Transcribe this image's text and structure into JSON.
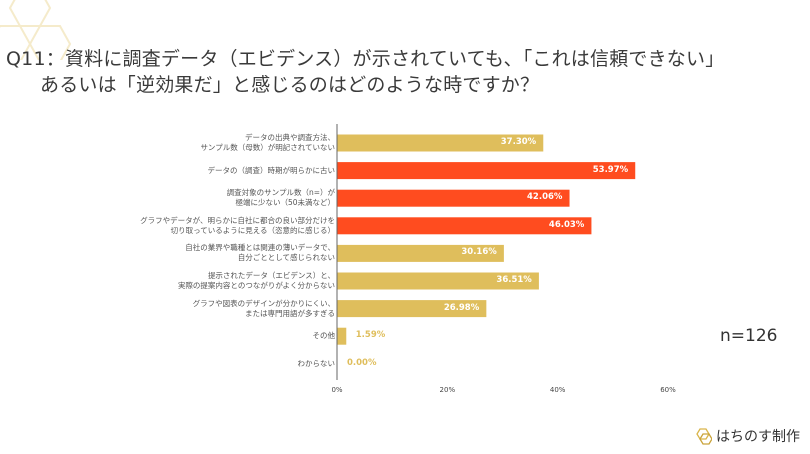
{
  "title": {
    "line1": "Q11：資料に調査データ（エビデンス）が示されていても、「これは信頼できない」",
    "line2": "あるいは「逆効果だ」と感じるのはどのような時ですか？"
  },
  "sample_size": "n=126",
  "logo_text": "はちのす制作",
  "colors": {
    "gold": "#DFBE5C",
    "red": "#FF4C1F",
    "axis": "#666666"
  },
  "chart_data": {
    "type": "bar",
    "orientation": "horizontal",
    "categories": [
      [
        "データの出典や調査方法、",
        "サンプル数（母数）が明記されていない"
      ],
      [
        "データの（調査）時期が明らかに古い"
      ],
      [
        "調査対象のサンプル数（n=）が",
        "極端に少ない（50未満など）"
      ],
      [
        "グラフやデータが、明らかに自社に都合の良い部分だけを",
        "切り取っているように見える（恣意的に感じる）"
      ],
      [
        "自社の業界や職種とは関連の薄いデータで、",
        "自分ごととして感じられない"
      ],
      [
        "提示されたデータ（エビデンス）と、",
        "実際の提案内容とのつながりがよく分からない"
      ],
      [
        "グラフや図表のデザインが分かりにくい、",
        "または専門用語が多すぎる"
      ],
      [
        "その他"
      ],
      [
        "わからない"
      ]
    ],
    "values": [
      37.3,
      53.97,
      42.06,
      46.03,
      30.16,
      36.51,
      26.98,
      1.59,
      0.0
    ],
    "value_labels": [
      "37.30%",
      "53.97%",
      "42.06%",
      "46.03%",
      "30.16%",
      "36.51%",
      "26.98%",
      "1.59%",
      "0.00%"
    ],
    "highlighted": [
      false,
      true,
      true,
      true,
      false,
      false,
      false,
      false,
      false
    ],
    "xlim": [
      0,
      60
    ],
    "xticks": [
      "0%",
      "20%",
      "40%",
      "60%"
    ],
    "grid": false
  }
}
